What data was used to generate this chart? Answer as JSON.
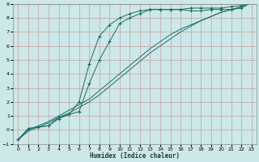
{
  "xlabel": "Humidex (Indice chaleur)",
  "bg_color": "#cde8e8",
  "grid_color": "#c8a0a0",
  "line_color": "#1a6e64",
  "xlim": [
    -0.5,
    23.5
  ],
  "ylim": [
    -1,
    9
  ],
  "xticks": [
    0,
    1,
    2,
    3,
    4,
    5,
    6,
    7,
    8,
    9,
    10,
    11,
    12,
    13,
    14,
    15,
    16,
    17,
    18,
    19,
    20,
    21,
    22,
    23
  ],
  "yticks": [
    -1,
    0,
    1,
    2,
    3,
    4,
    5,
    6,
    7,
    8,
    9
  ],
  "lines": [
    {
      "x": [
        0,
        1,
        2,
        3,
        4,
        5,
        6,
        7,
        8,
        9,
        10,
        11,
        12,
        13,
        14,
        15,
        16,
        17,
        18,
        19,
        20,
        21,
        22,
        23
      ],
      "y": [
        -0.7,
        0.1,
        0.2,
        0.3,
        0.8,
        1.1,
        1.3,
        3.3,
        5.0,
        6.3,
        7.6,
        8.0,
        8.3,
        8.6,
        8.6,
        8.6,
        8.6,
        8.7,
        8.7,
        8.7,
        8.7,
        8.8,
        8.9,
        9.1
      ],
      "has_markers": true
    },
    {
      "x": [
        0,
        1,
        2,
        3,
        4,
        5,
        6,
        7,
        8,
        9,
        10,
        11,
        12,
        13,
        14,
        15,
        16,
        17,
        18,
        19,
        20,
        21,
        22,
        23
      ],
      "y": [
        -0.7,
        0.1,
        0.2,
        0.3,
        0.9,
        1.1,
        2.0,
        4.7,
        6.7,
        7.5,
        8.0,
        8.3,
        8.5,
        8.6,
        8.6,
        8.6,
        8.6,
        8.5,
        8.5,
        8.6,
        8.6,
        8.6,
        8.7,
        9.1
      ],
      "has_markers": true
    },
    {
      "x": [
        0,
        1,
        2,
        3,
        4,
        5,
        6,
        7,
        8,
        9,
        10,
        11,
        12,
        13,
        14,
        15,
        16,
        17,
        18,
        19,
        20,
        21,
        22,
        23
      ],
      "y": [
        -0.7,
        0.0,
        0.3,
        0.6,
        1.0,
        1.4,
        1.8,
        2.2,
        2.8,
        3.4,
        4.0,
        4.6,
        5.2,
        5.8,
        6.3,
        6.8,
        7.2,
        7.5,
        7.8,
        8.1,
        8.4,
        8.6,
        8.8,
        9.1
      ],
      "has_markers": false
    },
    {
      "x": [
        0,
        1,
        2,
        3,
        4,
        5,
        6,
        7,
        8,
        9,
        10,
        11,
        12,
        13,
        14,
        15,
        16,
        17,
        18,
        19,
        20,
        21,
        22,
        23
      ],
      "y": [
        -0.7,
        -0.1,
        0.2,
        0.5,
        0.9,
        1.2,
        1.6,
        2.0,
        2.5,
        3.1,
        3.7,
        4.3,
        4.9,
        5.5,
        6.0,
        6.5,
        7.0,
        7.4,
        7.8,
        8.1,
        8.4,
        8.6,
        8.8,
        9.1
      ],
      "has_markers": false
    }
  ]
}
